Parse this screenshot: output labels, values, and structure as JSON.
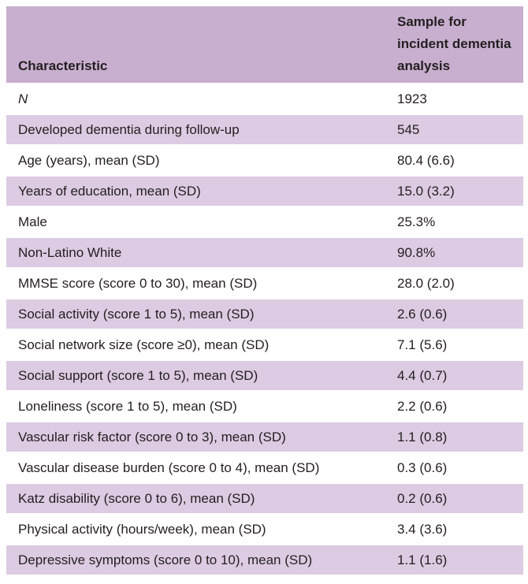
{
  "header": {
    "col1": "Characteristic",
    "col2": "Sample for incident dementia analysis"
  },
  "rows": [
    {
      "label": "N",
      "value": "1923"
    },
    {
      "label": "Developed dementia during follow-up",
      "value": "545"
    },
    {
      "label": "Age (years), mean (SD)",
      "value": "80.4 (6.6)"
    },
    {
      "label": "Years of education, mean (SD)",
      "value": "15.0 (3.2)"
    },
    {
      "label": "Male",
      "value": "25.3%"
    },
    {
      "label": "Non-Latino White",
      "value": "90.8%"
    },
    {
      "label": "MMSE score (score 0 to 30), mean (SD)",
      "value": "28.0 (2.0)"
    },
    {
      "label": "Social activity (score 1 to 5), mean (SD)",
      "value": "2.6 (0.6)"
    },
    {
      "label": "Social network size (score ≥0), mean (SD)",
      "value": "7.1 (5.6)"
    },
    {
      "label": "Social support (score 1 to 5), mean (SD)",
      "value": "4.4 (0.7)"
    },
    {
      "label": "Loneliness (score 1 to 5), mean (SD)",
      "value": "2.2 (0.6)"
    },
    {
      "label": "Vascular risk factor (score 0 to 3), mean (SD)",
      "value": "1.1 (0.8)"
    },
    {
      "label": "Vascular disease burden (score 0 to 4), mean (SD)",
      "value": "0.3 (0.6)"
    },
    {
      "label": "Katz disability (score 0 to 6), mean (SD)",
      "value": "0.2 (0.6)"
    },
    {
      "label": "Physical activity (hours/week), mean (SD)",
      "value": "3.4 (3.6)"
    },
    {
      "label": "Depressive symptoms (score 0 to 10), mean (SD)",
      "value": "1.1 (1.6)"
    }
  ]
}
